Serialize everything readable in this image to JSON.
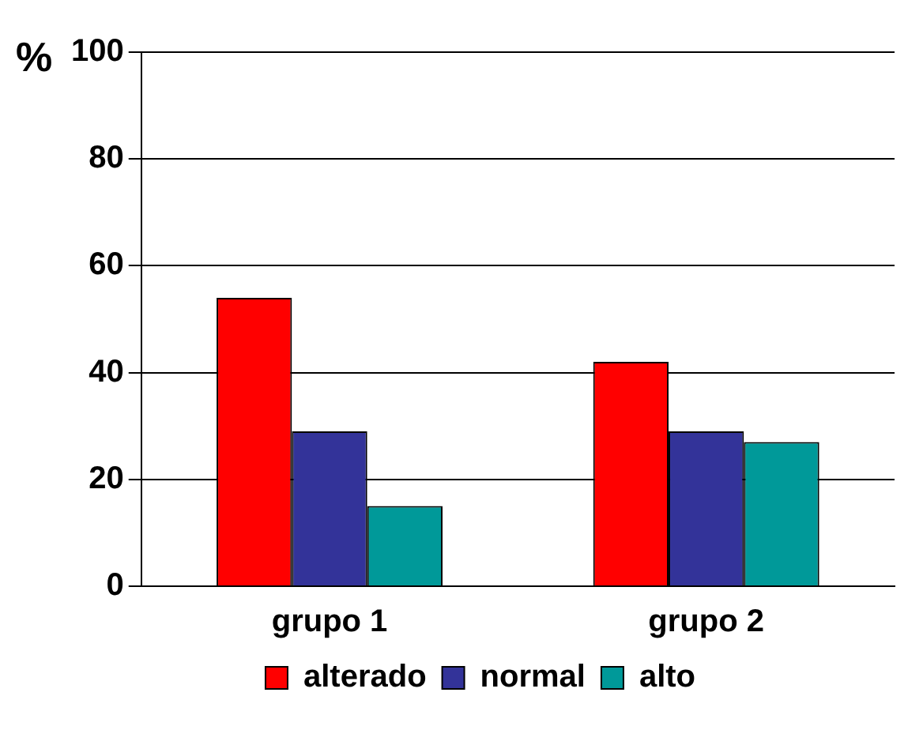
{
  "chart_data": {
    "type": "bar",
    "ylabel": "%",
    "categories": [
      "grupo 1",
      "grupo 2"
    ],
    "series": [
      {
        "name": "alterado",
        "color": "#ff0000",
        "values": [
          54,
          42
        ]
      },
      {
        "name": "normal",
        "color": "#333399",
        "values": [
          29,
          29
        ]
      },
      {
        "name": "alto",
        "color": "#009999",
        "values": [
          15,
          27
        ]
      }
    ],
    "ylim": [
      0,
      100
    ],
    "yticks": [
      0,
      20,
      40,
      60,
      80,
      100
    ],
    "grid": "y",
    "legend": "bottom"
  }
}
